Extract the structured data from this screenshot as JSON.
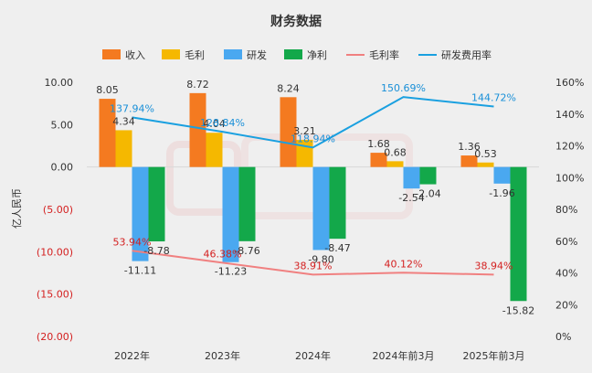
{
  "chart_data": {
    "type": "bar",
    "title": "财务数据",
    "ylabel": "亿人民币",
    "categories": [
      "2022年",
      "2023年",
      "2024年",
      "2024年前3月",
      "2025年前3月"
    ],
    "ylim": [
      -20,
      10
    ],
    "y_ticks": [
      "10.00",
      "5.00",
      "0.00",
      "(5.00)",
      "(10.00)",
      "(15.00)",
      "(20.00)"
    ],
    "y_tick_values": [
      10,
      5,
      0,
      -5,
      -10,
      -15,
      -20
    ],
    "y2lim": [
      0,
      160
    ],
    "y2_ticks": [
      "160%",
      "140%",
      "120%",
      "100%",
      "80%",
      "60%",
      "40%",
      "20%",
      "0%"
    ],
    "y2_tick_values": [
      160,
      140,
      120,
      100,
      80,
      60,
      40,
      20,
      0
    ],
    "grid": false,
    "legend_position": "top",
    "series": [
      {
        "name": "收入",
        "kind": "bar",
        "color": "#f47a20",
        "values": [
          8.05,
          8.72,
          8.24,
          1.68,
          1.36
        ],
        "labels": [
          "8.05",
          "8.72",
          "8.24",
          "1.68",
          "1.36"
        ]
      },
      {
        "name": "毛利",
        "kind": "bar",
        "color": "#f5b800",
        "values": [
          4.34,
          4.04,
          3.21,
          0.68,
          0.53
        ],
        "labels": [
          "4.34",
          "4.04",
          "3.21",
          "0.68",
          "0.53"
        ]
      },
      {
        "name": "研发",
        "kind": "bar",
        "color": "#4aa8f0",
        "values": [
          -11.11,
          -11.23,
          -9.8,
          -2.54,
          -1.96
        ],
        "labels": [
          "-11.11",
          "-11.23",
          "-9.80",
          "-2.54",
          "-1.96"
        ]
      },
      {
        "name": "净利",
        "kind": "bar",
        "color": "#13a84a",
        "values": [
          -8.78,
          -8.76,
          -8.47,
          -2.04,
          -15.82
        ],
        "labels": [
          "-8.78",
          "-8.76",
          "-8.47",
          "-2.04",
          "-15.82"
        ]
      },
      {
        "name": "毛利率",
        "kind": "line",
        "axis": "right",
        "color": "#f08080",
        "label_color": "#d42020",
        "values": [
          53.94,
          46.38,
          38.91,
          40.12,
          38.94
        ],
        "labels": [
          "53.94%",
          "46.38%",
          "38.91%",
          "40.12%",
          "38.94%"
        ]
      },
      {
        "name": "研发费用率",
        "kind": "line",
        "axis": "right",
        "color": "#1aa0e0",
        "label_color": "#1a90d8",
        "values": [
          137.94,
          128.84,
          118.94,
          150.69,
          144.72
        ],
        "labels": [
          "137.94%",
          "128.84%",
          "118.94%",
          "150.69%",
          "144.72%"
        ]
      }
    ]
  }
}
